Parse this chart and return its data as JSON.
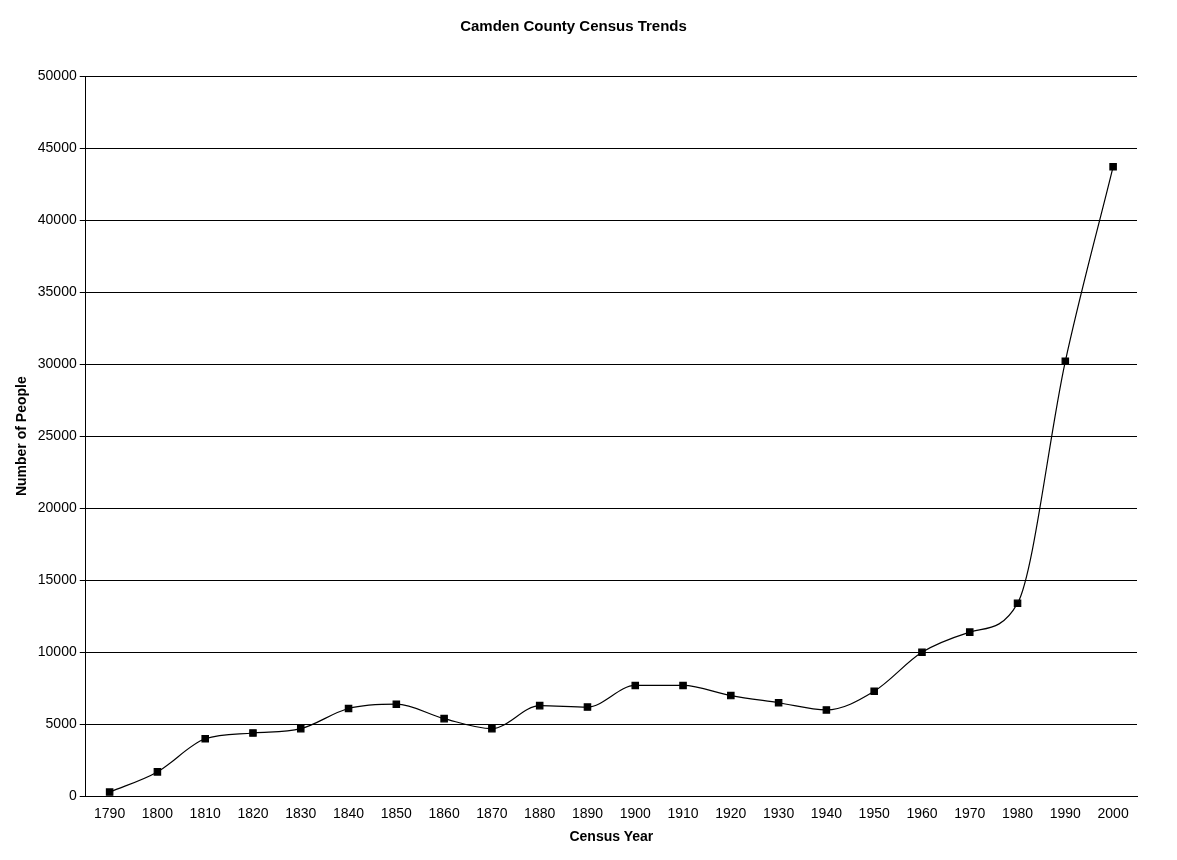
{
  "chart_data": {
    "type": "line",
    "title": "Camden County Census Trends",
    "xlabel": "Census Year",
    "ylabel": "Number of People",
    "categories": [
      "1790",
      "1800",
      "1810",
      "1820",
      "1830",
      "1840",
      "1850",
      "1860",
      "1870",
      "1880",
      "1890",
      "1900",
      "1910",
      "1920",
      "1930",
      "1940",
      "1950",
      "1960",
      "1970",
      "1980",
      "1990",
      "2000"
    ],
    "series": [
      {
        "color": "#000000",
        "values": [
          300,
          1700,
          4000,
          4400,
          4700,
          6100,
          6400,
          5400,
          4700,
          6300,
          6200,
          7700,
          7700,
          7000,
          6500,
          6000,
          7300,
          10000,
          11400,
          13400,
          30200,
          43700
        ]
      }
    ],
    "ylim": [
      0,
      50000
    ],
    "yticks": [
      0,
      5000,
      10000,
      15000,
      20000,
      25000,
      30000,
      35000,
      40000,
      45000,
      50000
    ],
    "grid": "y",
    "legend": false,
    "marker": "square",
    "line_style": "solid"
  }
}
